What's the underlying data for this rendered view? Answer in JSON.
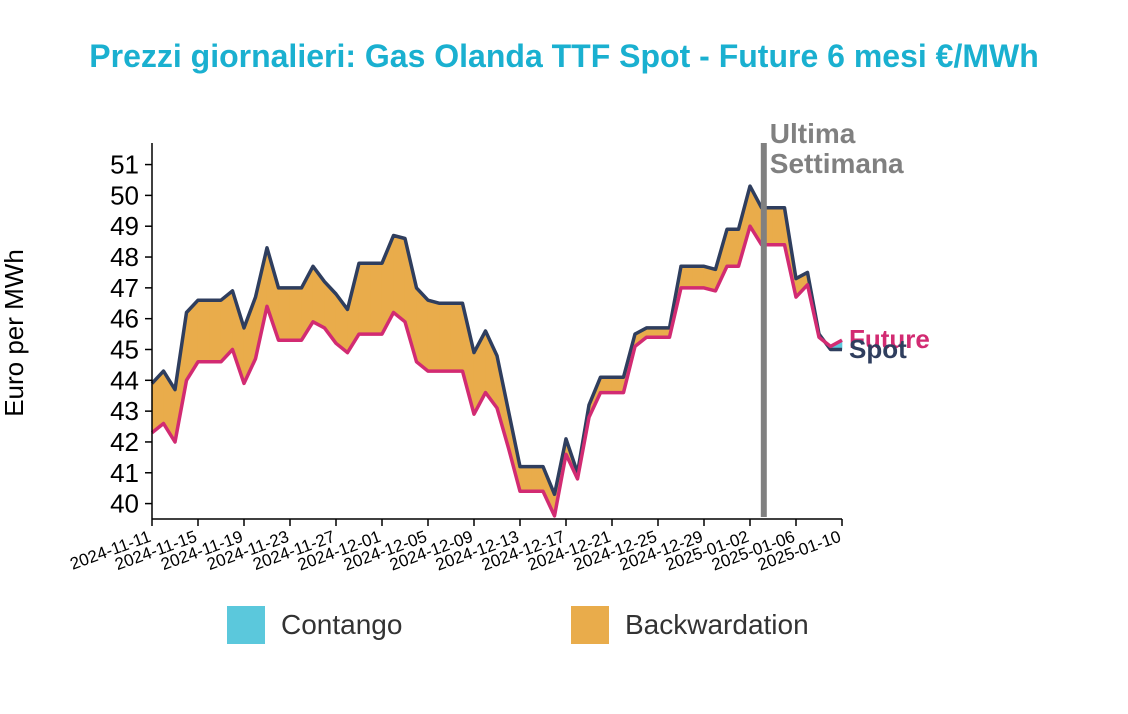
{
  "chart_data": {
    "type": "area",
    "title": "Prezzi giornalieri: Gas Olanda TTF Spot - Future 6 mesi €/MWh",
    "xlabel": "",
    "ylabel": "Euro per MWh",
    "ylim": [
      39.5,
      51.7
    ],
    "yticks": [
      40,
      41,
      42,
      43,
      44,
      45,
      46,
      47,
      48,
      49,
      50,
      51
    ],
    "xtick_labels": [
      "2024-11-11",
      "2024-11-15",
      "2024-11-19",
      "2024-11-23",
      "2024-11-27",
      "2024-12-01",
      "2024-12-05",
      "2024-12-09",
      "2024-12-13",
      "2024-12-17",
      "2024-12-21",
      "2024-12-25",
      "2024-12-29",
      "2025-01-02",
      "2025-01-06",
      "2025-01-10"
    ],
    "x": [
      "2024-11-11",
      "2024-11-12",
      "2024-11-13",
      "2024-11-14",
      "2024-11-15",
      "2024-11-16",
      "2024-11-17",
      "2024-11-18",
      "2024-11-19",
      "2024-11-20",
      "2024-11-21",
      "2024-11-22",
      "2024-11-23",
      "2024-11-24",
      "2024-11-25",
      "2024-11-26",
      "2024-11-27",
      "2024-11-28",
      "2024-11-29",
      "2024-11-30",
      "2024-12-01",
      "2024-12-02",
      "2024-12-03",
      "2024-12-04",
      "2024-12-05",
      "2024-12-06",
      "2024-12-07",
      "2024-12-08",
      "2024-12-09",
      "2024-12-10",
      "2024-12-11",
      "2024-12-12",
      "2024-12-13",
      "2024-12-14",
      "2024-12-15",
      "2024-12-16",
      "2024-12-17",
      "2024-12-18",
      "2024-12-19",
      "2024-12-20",
      "2024-12-21",
      "2024-12-22",
      "2024-12-23",
      "2024-12-24",
      "2024-12-25",
      "2024-12-26",
      "2024-12-27",
      "2024-12-28",
      "2024-12-29",
      "2024-12-30",
      "2024-12-31",
      "2025-01-01",
      "2025-01-02",
      "2025-01-03",
      "2025-01-04",
      "2025-01-05",
      "2025-01-06",
      "2025-01-07",
      "2025-01-08",
      "2025-01-09",
      "2025-01-10"
    ],
    "series": [
      {
        "name": "Spot",
        "color": "#2f3e5e",
        "values": [
          43.9,
          44.3,
          43.7,
          46.2,
          46.6,
          46.6,
          46.6,
          46.9,
          45.7,
          46.7,
          48.3,
          47.0,
          47.0,
          47.0,
          47.7,
          47.2,
          46.8,
          46.3,
          47.8,
          47.8,
          47.8,
          48.7,
          48.6,
          47.0,
          46.6,
          46.5,
          46.5,
          46.5,
          44.9,
          45.6,
          44.8,
          43.0,
          41.2,
          41.2,
          41.2,
          40.3,
          42.1,
          41.0,
          43.2,
          44.1,
          44.1,
          44.1,
          45.5,
          45.7,
          45.7,
          45.7,
          47.7,
          47.7,
          47.7,
          47.6,
          48.9,
          48.9,
          50.3,
          49.6,
          49.6,
          49.6,
          47.3,
          47.5,
          45.5,
          45.0,
          45.0
        ]
      },
      {
        "name": "Future",
        "color": "#d22b72",
        "values": [
          42.3,
          42.6,
          42.0,
          44.0,
          44.6,
          44.6,
          44.6,
          45.0,
          43.9,
          44.7,
          46.4,
          45.3,
          45.3,
          45.3,
          45.9,
          45.7,
          45.2,
          44.9,
          45.5,
          45.5,
          45.5,
          46.2,
          45.9,
          44.6,
          44.3,
          44.3,
          44.3,
          44.3,
          42.9,
          43.6,
          43.1,
          41.8,
          40.4,
          40.4,
          40.4,
          39.6,
          41.6,
          40.8,
          42.8,
          43.6,
          43.6,
          43.6,
          45.1,
          45.4,
          45.4,
          45.4,
          47.0,
          47.0,
          47.0,
          46.9,
          47.7,
          47.7,
          49.0,
          48.4,
          48.4,
          48.4,
          46.7,
          47.1,
          45.4,
          45.1,
          45.3
        ]
      }
    ],
    "band_legend": [
      {
        "label": "Contango",
        "color": "#5bc8dc"
      },
      {
        "label": "Backwardation",
        "color": "#e9ac4b"
      }
    ],
    "annotation": {
      "label_line1": "Ultima",
      "label_line2": "Settimana",
      "date": "2025-01-03",
      "color": "#808080"
    },
    "title_color": "#1ab0d0",
    "legend_placement": "bottom",
    "grid": false
  }
}
